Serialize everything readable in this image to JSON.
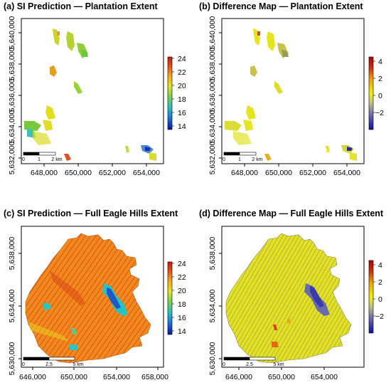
{
  "panels": [
    {
      "title": "(a) SI Prediction — Plantation Extent",
      "y_ticks": [
        "5,640,000",
        "5,638,000",
        "5,636,000",
        "5,634,000",
        "5,632,000"
      ],
      "x_ticks": [
        "648,000",
        "650,000",
        "652,000",
        "654,000"
      ],
      "legend_ticks": [
        "24",
        "22",
        "20",
        "18",
        "16",
        "14"
      ],
      "scale_labels": [
        "0",
        "1",
        "2 km"
      ]
    },
    {
      "title": "(b) Difference Map — Plantation Extent",
      "y_ticks": [
        "5,640,000",
        "5,638,000",
        "5,636,000",
        "5,634,000",
        "5,632,000"
      ],
      "x_ticks": [
        "648,000",
        "650,000",
        "652,000",
        "654,000"
      ],
      "legend_ticks": [
        "4",
        "2",
        "0",
        "−2"
      ],
      "scale_labels": [
        "0",
        "1",
        "2 km"
      ]
    },
    {
      "title": "(c) SI Prediction — Full Eagle Hills Extent",
      "y_ticks": [
        "5,638,000",
        "5,634,000",
        "5,630,000"
      ],
      "x_ticks": [
        "646,000",
        "650,000",
        "654,000",
        "658,000"
      ],
      "legend_ticks": [
        "24",
        "22",
        "20",
        "18",
        "16",
        "14"
      ],
      "scale_labels": [
        "0",
        "2.5",
        "5 km"
      ]
    },
    {
      "title": "(d) Difference Map — Full Eagle Hills Extent",
      "y_ticks": [
        "5,638,000",
        "5,634,000",
        "5,630,000"
      ],
      "x_ticks": [
        "646,000",
        "650,000",
        "654,000"
      ],
      "legend_ticks": [
        "4",
        "2",
        "0",
        "−2"
      ],
      "scale_labels": [
        "0",
        "2.5",
        "5 km"
      ]
    }
  ],
  "colors": {
    "si_ramp": [
      "#0a12a8",
      "#1e6fd6",
      "#23c2c2",
      "#7ad04a",
      "#e6e61a",
      "#f2a21a",
      "#e44d1a",
      "#c41a10"
    ],
    "diff_ramp": [
      "#1010a0",
      "#6a6ab0",
      "#c8c87a",
      "#f0f000",
      "#f0a000",
      "#d03010",
      "#b00000"
    ]
  }
}
